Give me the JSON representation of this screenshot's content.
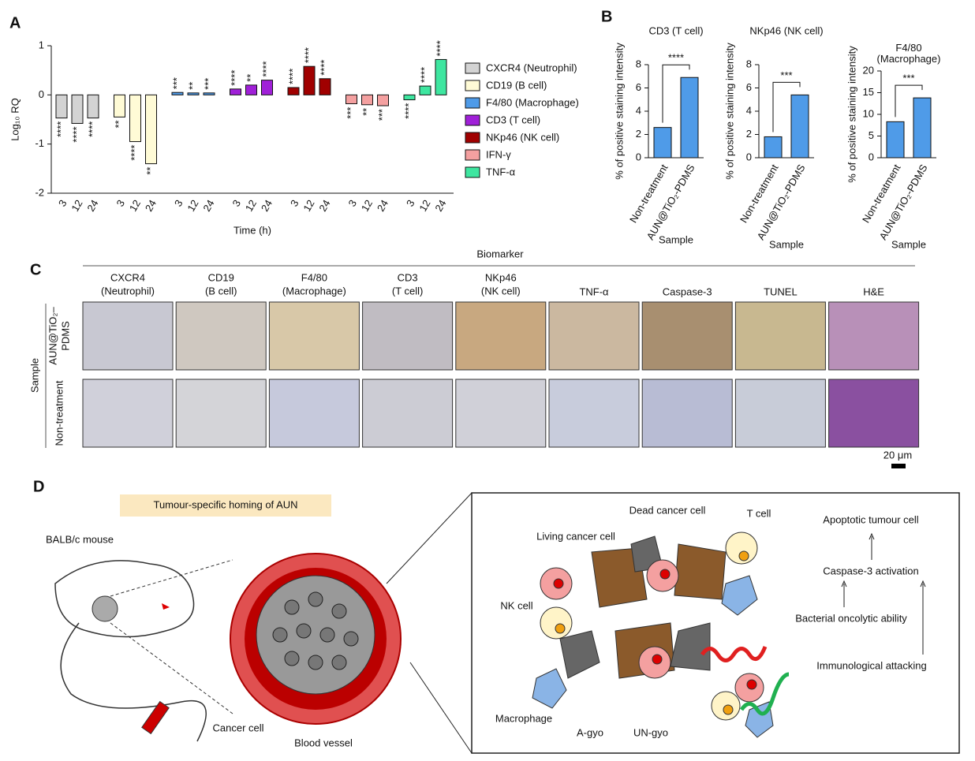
{
  "panel_labels": [
    "A",
    "B",
    "C",
    "D"
  ],
  "chart_data": [
    {
      "type": "bar",
      "ylabel": "Log₁₀ RQ",
      "xlabel": "Time (h)",
      "categories": [
        "3",
        "12",
        "24"
      ],
      "ylim": [
        -2,
        1
      ],
      "yticks": [
        -2,
        -1,
        0,
        1
      ],
      "series": [
        {
          "name": "CXCR4 (Neutrophil)",
          "color": "#d3d3d3",
          "values": [
            -0.47,
            -0.58,
            -0.47
          ],
          "significance": [
            "****",
            "****",
            "****"
          ]
        },
        {
          "name": "CD19 (B cell)",
          "color": "#fffbd6",
          "values": [
            -0.45,
            -0.95,
            -1.4
          ],
          "significance": [
            "**",
            "****",
            "**"
          ]
        },
        {
          "name": "F4/80 (Macrophage)",
          "color": "#4f9be8",
          "values": [
            0.05,
            0.04,
            0.04
          ],
          "significance": [
            "***",
            "**",
            "***"
          ]
        },
        {
          "name": "CD3 (T cell)",
          "color": "#a020d8",
          "values": [
            0.12,
            0.2,
            0.3
          ],
          "significance": [
            "****",
            "**",
            "****"
          ]
        },
        {
          "name": "NKp46 (NK cell)",
          "color": "#a00000",
          "values": [
            0.15,
            0.58,
            0.33
          ],
          "significance": [
            "****",
            "****",
            "****"
          ]
        },
        {
          "name": "IFN-γ",
          "color": "#f4a0a0",
          "values": [
            -0.18,
            -0.2,
            -0.22
          ],
          "significance": [
            "***",
            "**",
            "***"
          ]
        },
        {
          "name": "TNF-α",
          "color": "#3ee6a0",
          "values": [
            -0.1,
            0.18,
            0.72
          ],
          "significance": [
            "****",
            "****",
            "****"
          ]
        }
      ]
    },
    {
      "type": "bar",
      "title": "CD3 (T cell)",
      "ylabel": "% of positive staining intensity",
      "xlabel": "Sample",
      "categories": [
        "Non-treatment",
        "AUN@TiO₂-PDMS"
      ],
      "values": [
        2.6,
        6.9
      ],
      "color": "#4f9be8",
      "ylim": [
        0,
        8
      ],
      "yticks": [
        0,
        2,
        4,
        6,
        8
      ],
      "significance": "****"
    },
    {
      "type": "bar",
      "title": "NKp46 (NK cell)",
      "ylabel": "% of positive staining intensity",
      "xlabel": "Sample",
      "categories": [
        "Non-treatment",
        "AUN@TiO₂-PDMS"
      ],
      "values": [
        1.8,
        5.4
      ],
      "color": "#4f9be8",
      "ylim": [
        0,
        8
      ],
      "yticks": [
        0,
        2,
        4,
        6,
        8
      ],
      "significance": "***"
    },
    {
      "type": "bar",
      "title": "F4/80 (Macrophage)",
      "ylabel": "% of positive staining intensity",
      "xlabel": "Sample",
      "categories": [
        "Non-treatment",
        "AUN@TiO₂-PDMS"
      ],
      "values": [
        8.3,
        13.8
      ],
      "color": "#4f9be8",
      "ylim": [
        0,
        20
      ],
      "yticks": [
        0,
        5,
        10,
        15,
        20
      ],
      "significance": "***"
    }
  ],
  "panel_c": {
    "header": "Biomarker",
    "row_label": "Sample",
    "columns": [
      [
        "CXCR4",
        "(Neutrophil)"
      ],
      [
        "CD19",
        "(B cell)"
      ],
      [
        "F4/80",
        "(Macrophage)"
      ],
      [
        "CD3",
        "(T cell)"
      ],
      [
        "NKp46",
        "(NK cell)"
      ],
      [
        "TNF-α"
      ],
      [
        "Caspase-3"
      ],
      [
        "TUNEL"
      ],
      [
        "H&E"
      ]
    ],
    "rows": [
      [
        "AUN@TiO₂–",
        "PDMS"
      ],
      [
        "Non-treatment"
      ]
    ],
    "scale_bar": "20 μm"
  },
  "panel_d": {
    "title": "Tumour-specific homing of AUN",
    "labels": [
      "BALB/c mouse",
      "Cancer cell",
      "Blood vessel",
      "Dead cancer cell",
      "T cell",
      "Living cancer cell",
      "NK cell",
      "Macrophage",
      "A-gyo",
      "UN-gyo",
      "Apoptotic tumour cell",
      "Caspase-3 activation",
      "Bacterial oncolytic ability",
      "Immunological attacking"
    ]
  }
}
